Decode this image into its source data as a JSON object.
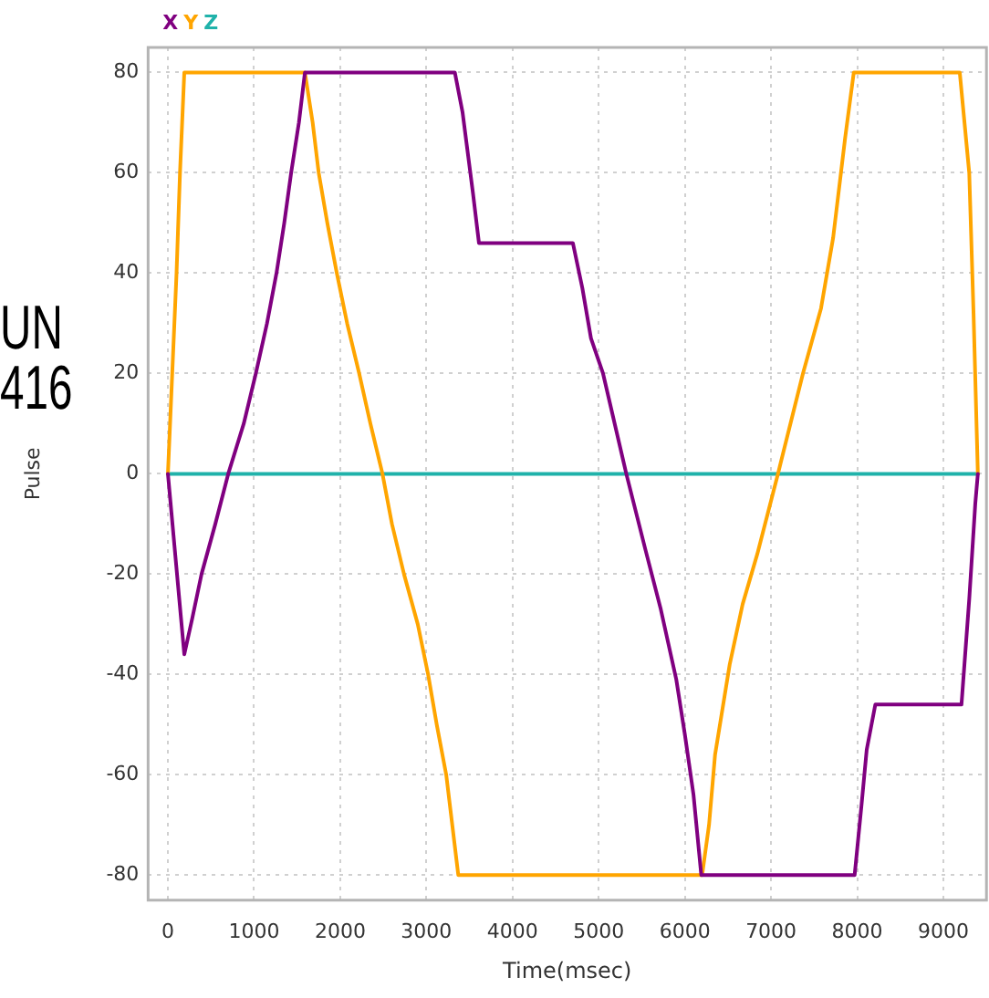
{
  "chart_data": {
    "type": "line",
    "xlabel": "Time(msec)",
    "ylabel": "Pulse",
    "annotations": [
      "UN",
      "416"
    ],
    "xlim": [
      -230,
      9500
    ],
    "xticks": [
      0,
      1000,
      2000,
      3000,
      4000,
      5000,
      6000,
      7000,
      8000,
      9000
    ],
    "ylim": [
      -85,
      85
    ],
    "yticks": [
      -80,
      -60,
      -40,
      -20,
      0,
      20,
      40,
      60,
      80
    ],
    "grid": true,
    "legend": "top left",
    "marker": "none",
    "line_style": "solid",
    "series": [
      {
        "name": "X",
        "color": "#800080",
        "x": [
          0,
          190,
          280,
          390,
          550,
          700,
          880,
          1020,
          1150,
          1260,
          1350,
          1430,
          1520,
          1590,
          3330,
          3420,
          3540,
          3610,
          4700,
          4810,
          4910,
          5050,
          5320,
          5540,
          5720,
          5900,
          6000,
          6100,
          6190,
          7970,
          8050,
          8110,
          8210,
          9210,
          9300,
          9370,
          9400
        ],
        "values": [
          0,
          -36,
          -29,
          -20,
          -10,
          0,
          10,
          20,
          30,
          40,
          50,
          60,
          70,
          80,
          80,
          72,
          56,
          46,
          46,
          37,
          27,
          20,
          0,
          -15,
          -27,
          -41,
          -52,
          -64,
          -80,
          -80,
          -66,
          -55,
          -46,
          -46,
          -25,
          -6,
          0
        ]
      },
      {
        "name": "Y",
        "color": "#ffa500",
        "x": [
          0,
          50,
          100,
          140,
          190,
          1590,
          1680,
          1750,
          1850,
          1960,
          2080,
          2220,
          2350,
          2490,
          2600,
          2740,
          2900,
          3020,
          3120,
          3230,
          3300,
          3370,
          6200,
          6280,
          6350,
          6520,
          6670,
          6840,
          7080,
          7370,
          7580,
          7720,
          7860,
          7960,
          9190,
          9300,
          9350,
          9400
        ],
        "values": [
          0,
          20,
          40,
          60,
          80,
          80,
          70,
          60,
          50,
          40,
          30,
          20,
          10,
          0,
          -10,
          -20,
          -30,
          -40,
          -50,
          -60,
          -70,
          -80,
          -80,
          -70,
          -56,
          -38,
          -26,
          -16,
          0,
          20,
          33,
          47,
          67,
          80,
          80,
          60,
          32,
          0
        ]
      },
      {
        "name": "Z",
        "color": "#20b2aa",
        "x": [
          0,
          9400
        ],
        "values": [
          0,
          0
        ]
      }
    ]
  }
}
